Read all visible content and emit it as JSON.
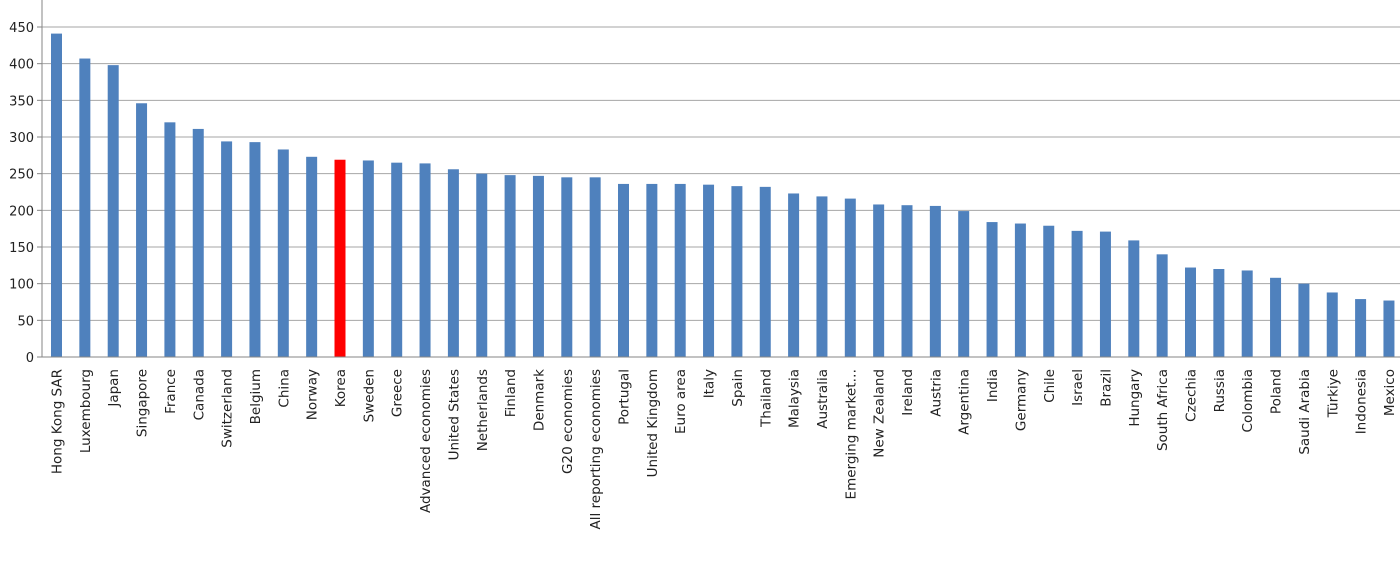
{
  "chart_data": {
    "type": "bar",
    "title": "",
    "xlabel": "",
    "ylabel": "",
    "ylim": [
      0,
      450
    ],
    "yticks": [
      0,
      50,
      100,
      150,
      200,
      250,
      300,
      350,
      400,
      450
    ],
    "grid": true,
    "legend": "none",
    "bar_color": "#4f81bd",
    "highlight_color": "#ff0000",
    "highlight_category": "Korea",
    "categories": [
      "Hong Kong SAR",
      "Luxembourg",
      "Japan",
      "Singapore",
      "France",
      "Canada",
      "Switzerland",
      "Belgium",
      "China",
      "Norway",
      "Korea",
      "Sweden",
      "Greece",
      "Advanced economies",
      "United States",
      "Netherlands",
      "Finland",
      "Denmark",
      "G20 economies",
      "All reporting economies",
      "Portugal",
      "United Kingdom",
      "Euro area",
      "Italy",
      "Spain",
      "Thailand",
      "Malaysia",
      "Australia",
      "Emerging  market…",
      "New Zealand",
      "Ireland",
      "Austria",
      "Argentina",
      "India",
      "Germany",
      "Chile",
      "Israel",
      "Brazil",
      "Hungary",
      "South Africa",
      "Czechia",
      "Russia",
      "Colombia",
      "Poland",
      "Saudi Arabia",
      "Türkiye",
      "Indonesia",
      "Mexico"
    ],
    "values": [
      441,
      407,
      398,
      346,
      320,
      311,
      294,
      293,
      283,
      273,
      269,
      268,
      265,
      264,
      256,
      250,
      248,
      247,
      245,
      245,
      236,
      236,
      236,
      235,
      233,
      232,
      223,
      219,
      216,
      208,
      207,
      206,
      199,
      184,
      182,
      179,
      172,
      171,
      159,
      140,
      122,
      120,
      118,
      108,
      100,
      88,
      79,
      77
    ]
  }
}
